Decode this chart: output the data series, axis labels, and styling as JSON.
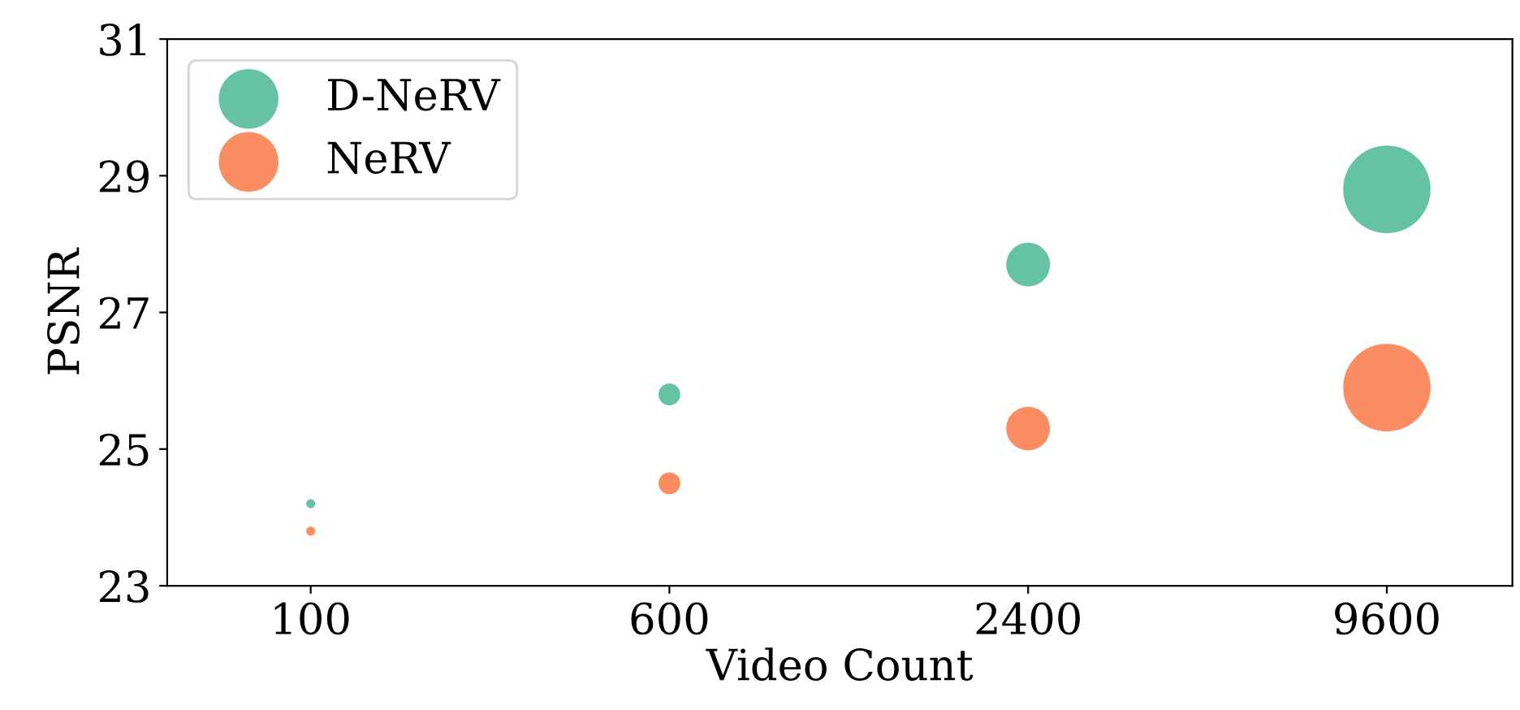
{
  "chart_data": {
    "type": "bubble",
    "xlabel": "Video Count",
    "ylabel": "PSNR",
    "categories": [
      "100",
      "600",
      "2400",
      "9600"
    ],
    "ylim": [
      23,
      31
    ],
    "yticks": [
      23,
      25,
      27,
      29,
      31
    ],
    "series": [
      {
        "name": "D-NeRV",
        "color": "#66c2a5",
        "values": [
          24.2,
          25.8,
          27.7,
          28.8
        ],
        "sizes": [
          0.0104,
          0.0625,
          0.25,
          1
        ]
      },
      {
        "name": "NeRV",
        "color": "#fc8d62",
        "values": [
          23.8,
          24.5,
          25.3,
          25.9
        ],
        "sizes": [
          0.0104,
          0.0625,
          0.25,
          1
        ]
      }
    ],
    "legend": "top left",
    "grid": false
  }
}
